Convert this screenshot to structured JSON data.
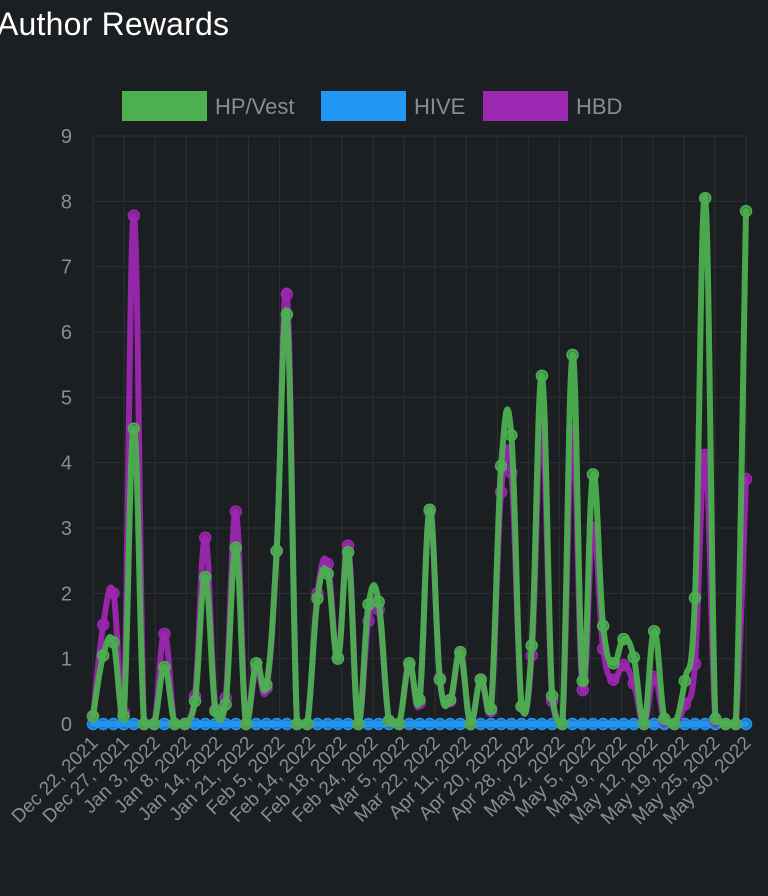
{
  "chart_data": {
    "type": "line",
    "title": "Author Rewards",
    "xlabel": "",
    "ylabel": "",
    "ylim": [
      0,
      9
    ],
    "yticks": [
      0,
      1,
      2,
      3,
      4,
      5,
      6,
      7,
      8,
      9
    ],
    "grid": true,
    "legend_position": "top-center",
    "colors": {
      "background": "#1c1f22",
      "grid": "#2c3034",
      "tick_text": "#8a8d90",
      "legend_text": "#8a8d90",
      "title_text": "#ffffff"
    },
    "tick_labels": [
      "Dec 22, 2021",
      "Dec 27, 2021",
      "Jan 3, 2022",
      "Jan 8, 2022",
      "Jan 14, 2022",
      "Jan 21, 2022",
      "Feb 5, 2022",
      "Feb 14, 2022",
      "Feb 18, 2022",
      "Feb 24, 2022",
      "Mar 5, 2022",
      "Mar 22, 2022",
      "Apr 11, 2022",
      "Apr 20, 2022",
      "Apr 28, 2022",
      "May 2, 2022",
      "May 5, 2022",
      "May 9, 2022",
      "May 12, 2022",
      "May 19, 2022",
      "May 25, 2022",
      "May 30, 2022"
    ],
    "series": [
      {
        "name": "HP/Vest",
        "color": "#4caf50",
        "values": [
          0.12,
          1.05,
          1.25,
          0.12,
          4.52,
          0,
          0,
          0.87,
          0,
          0,
          0.35,
          2.25,
          0.2,
          0.3,
          2.7,
          0,
          0.93,
          0.6,
          2.65,
          6.27,
          0,
          0,
          1.92,
          2.3,
          1.0,
          2.63,
          0,
          1.83,
          1.87,
          0.05,
          0,
          0.93,
          0.37,
          3.28,
          0.68,
          0.37,
          1.1,
          0,
          0.68,
          0.23,
          3.95,
          4.42,
          0.27,
          1.2,
          5.33,
          0.43,
          0,
          5.65,
          0.66,
          3.82,
          1.5,
          0.93,
          1.3,
          1.02,
          0,
          1.42,
          0.08,
          0,
          0.66,
          1.93,
          8.05,
          0.08,
          0,
          0,
          7.85
        ]
      },
      {
        "name": "HIVE",
        "color": "#2196f3",
        "values": [
          0,
          0,
          0,
          0,
          0,
          0,
          0,
          0,
          0,
          0,
          0,
          0,
          0,
          0,
          0,
          0,
          0,
          0,
          0,
          0,
          0,
          0,
          0,
          0,
          0,
          0,
          0,
          0,
          0,
          0,
          0,
          0,
          0,
          0,
          0,
          0,
          0,
          0,
          0,
          0,
          0,
          0,
          0,
          0,
          0,
          0,
          0,
          0,
          0,
          0,
          0,
          0,
          0,
          0,
          0,
          0,
          0,
          0,
          0,
          0,
          0,
          0,
          0,
          0,
          0
        ]
      },
      {
        "name": "HBD",
        "color": "#9c27b0",
        "values": [
          0.12,
          1.52,
          2.0,
          0.18,
          7.78,
          0,
          0,
          1.38,
          0,
          0,
          0.43,
          2.85,
          0.22,
          0.4,
          3.25,
          0,
          0.85,
          0.55,
          2.65,
          6.58,
          0,
          0,
          2.0,
          2.45,
          1.02,
          2.73,
          0,
          1.58,
          1.75,
          0.05,
          0,
          0.9,
          0.32,
          3.25,
          0.7,
          0.35,
          1.08,
          0,
          0.68,
          0.2,
          3.55,
          3.85,
          0.27,
          1.05,
          4.6,
          0.35,
          0,
          4.5,
          0.52,
          3.0,
          1.15,
          0.68,
          0.9,
          0.62,
          0,
          0.72,
          0.05,
          0,
          0.3,
          0.92,
          4.12,
          0.05,
          0,
          0,
          3.75
        ]
      }
    ]
  }
}
